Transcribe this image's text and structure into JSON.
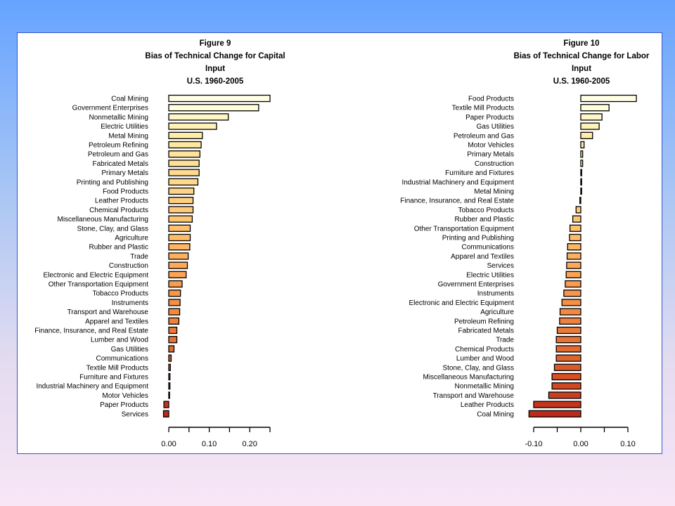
{
  "chart_data": [
    {
      "type": "bar",
      "orientation": "horizontal",
      "title": [
        "Figure 9",
        "Bias of Technical Change for Capital",
        "Input",
        "U.S. 1960-2005"
      ],
      "xlim": [
        0.0,
        0.25
      ],
      "xticks": [
        0.0,
        0.05,
        0.1,
        0.15,
        0.2,
        0.25
      ],
      "xticklabels": [
        "0.00",
        "",
        "0.10",
        "",
        "0.20",
        ""
      ],
      "grid": false,
      "bars": [
        {
          "category": "Coal Mining",
          "value": 0.25,
          "color": "#ffffe6"
        },
        {
          "category": "Government Enterprises",
          "value": 0.222,
          "color": "#ffffdb"
        },
        {
          "category": "Nonmetallic Mining",
          "value": 0.147,
          "color": "#fff6c6"
        },
        {
          "category": "Electric Utilities",
          "value": 0.118,
          "color": "#fff2b9"
        },
        {
          "category": "Metal Mining",
          "value": 0.083,
          "color": "#ffeda7"
        },
        {
          "category": "Petroleum Refining",
          "value": 0.08,
          "color": "#ffe9a0"
        },
        {
          "category": "Petroleum and Gas",
          "value": 0.077,
          "color": "#ffe49a"
        },
        {
          "category": "Fabricated Metals",
          "value": 0.075,
          "color": "#ffe096"
        },
        {
          "category": "Primary Metals",
          "value": 0.075,
          "color": "#ffdb90"
        },
        {
          "category": "Printing and Publishing",
          "value": 0.072,
          "color": "#ffd88a"
        },
        {
          "category": "Food Products",
          "value": 0.062,
          "color": "#ffd385"
        },
        {
          "category": "Leather Products",
          "value": 0.06,
          "color": "#ffce7e"
        },
        {
          "category": "Chemical Products",
          "value": 0.06,
          "color": "#ffca78"
        },
        {
          "category": "Miscellaneous Manufacturing",
          "value": 0.058,
          "color": "#ffc672"
        },
        {
          "category": "Stone, Clay, and Glass",
          "value": 0.053,
          "color": "#ffc16c"
        },
        {
          "category": "Agriculture",
          "value": 0.053,
          "color": "#ffbb66"
        },
        {
          "category": "Rubber and Plastic",
          "value": 0.052,
          "color": "#ffb662"
        },
        {
          "category": "Trade",
          "value": 0.048,
          "color": "#ffb05d"
        },
        {
          "category": "Construction",
          "value": 0.046,
          "color": "#ffa958"
        },
        {
          "category": "Electronic and Electric Equipment",
          "value": 0.043,
          "color": "#fda353"
        },
        {
          "category": "Other Transportation Equipment",
          "value": 0.033,
          "color": "#fb9c4e"
        },
        {
          "category": "Tobacco Products",
          "value": 0.029,
          "color": "#f8964a"
        },
        {
          "category": "Instruments",
          "value": 0.028,
          "color": "#f58f45"
        },
        {
          "category": "Transport and Warehouse",
          "value": 0.027,
          "color": "#f28941"
        },
        {
          "category": "Apparel and Textiles",
          "value": 0.025,
          "color": "#ee823d"
        },
        {
          "category": "Finance, Insurance, and Real Estate",
          "value": 0.02,
          "color": "#ea7a39"
        },
        {
          "category": "Lumber and Wood",
          "value": 0.02,
          "color": "#e67335"
        },
        {
          "category": "Gas Utilities",
          "value": 0.013,
          "color": "#e26b31"
        },
        {
          "category": "Communications",
          "value": 0.006,
          "color": "#de632d"
        },
        {
          "category": "Textile Mill Products",
          "value": 0.004,
          "color": "#d95a29"
        },
        {
          "category": "Furniture and Fixtures",
          "value": 0.003,
          "color": "#d45126"
        },
        {
          "category": "Industrial Machinery and Equipment",
          "value": 0.003,
          "color": "#cf4822"
        },
        {
          "category": "Motor Vehicles",
          "value": 0.002,
          "color": "#c93e1f"
        },
        {
          "category": "Paper Products",
          "value": -0.012,
          "color": "#c4341c"
        },
        {
          "category": "Services",
          "value": -0.013,
          "color": "#bd2a19"
        }
      ]
    },
    {
      "type": "bar",
      "orientation": "horizontal",
      "title": [
        "Figure 10",
        "Bias of Technical Change for Labor",
        "Input",
        "U.S. 1960-2005"
      ],
      "xlim": [
        -0.1,
        0.1
      ],
      "xticks": [
        -0.1,
        -0.05,
        0.0,
        0.05,
        0.1
      ],
      "xticklabels": [
        "-0.10",
        "",
        "0.00",
        "",
        "0.10"
      ],
      "grid": false,
      "bars": [
        {
          "category": "Food Products",
          "value": 0.118,
          "color": "#ffffe6"
        },
        {
          "category": "Textile Mill Products",
          "value": 0.06,
          "color": "#ffffdb"
        },
        {
          "category": "Paper Products",
          "value": 0.045,
          "color": "#fff6c6"
        },
        {
          "category": "Gas Utilities",
          "value": 0.039,
          "color": "#fff2b9"
        },
        {
          "category": "Petroleum and Gas",
          "value": 0.025,
          "color": "#ffeda7"
        },
        {
          "category": "Motor Vehicles",
          "value": 0.007,
          "color": "#ffe9a0"
        },
        {
          "category": "Primary Metals",
          "value": 0.004,
          "color": "#ffe49a"
        },
        {
          "category": "Construction",
          "value": 0.004,
          "color": "#ffe096"
        },
        {
          "category": "Furniture and Fixtures",
          "value": 0.002,
          "color": "#ffdb90"
        },
        {
          "category": "Industrial Machinery and Equipment",
          "value": 0.001,
          "color": "#ffd88a"
        },
        {
          "category": "Metal Mining",
          "value": 0.0,
          "color": "#ffd385"
        },
        {
          "category": "Finance, Insurance, and Real Estate",
          "value": -0.002,
          "color": "#ffce7e"
        },
        {
          "category": "Tobacco Products",
          "value": -0.01,
          "color": "#ffca78"
        },
        {
          "category": "Rubber and Plastic",
          "value": -0.017,
          "color": "#ffc672"
        },
        {
          "category": "Other Transportation Equipment",
          "value": -0.023,
          "color": "#ffc16c"
        },
        {
          "category": "Printing and Publishing",
          "value": -0.024,
          "color": "#ffbb66"
        },
        {
          "category": "Communications",
          "value": -0.028,
          "color": "#ffb662"
        },
        {
          "category": "Apparel and Textiles",
          "value": -0.029,
          "color": "#ffb05d"
        },
        {
          "category": "Services",
          "value": -0.03,
          "color": "#ffa958"
        },
        {
          "category": "Electric Utilities",
          "value": -0.031,
          "color": "#fda353"
        },
        {
          "category": "Government Enterprises",
          "value": -0.033,
          "color": "#fb9c4e"
        },
        {
          "category": "Instruments",
          "value": -0.036,
          "color": "#f8964a"
        },
        {
          "category": "Electronic and Electric Equipment",
          "value": -0.04,
          "color": "#f58f45"
        },
        {
          "category": "Agriculture",
          "value": -0.044,
          "color": "#f28941"
        },
        {
          "category": "Petroleum Refining",
          "value": -0.045,
          "color": "#ee823d"
        },
        {
          "category": "Fabricated Metals",
          "value": -0.05,
          "color": "#ea7a39"
        },
        {
          "category": "Trade",
          "value": -0.052,
          "color": "#e67335"
        },
        {
          "category": "Chemical Products",
          "value": -0.052,
          "color": "#e26b31"
        },
        {
          "category": "Lumber and Wood",
          "value": -0.052,
          "color": "#de632d"
        },
        {
          "category": "Stone, Clay, and Glass",
          "value": -0.056,
          "color": "#d95a29"
        },
        {
          "category": "Miscellaneous Manufacturing",
          "value": -0.061,
          "color": "#d45126"
        },
        {
          "category": "Nonmetallic Mining",
          "value": -0.061,
          "color": "#cf4822"
        },
        {
          "category": "Transport and Warehouse",
          "value": -0.068,
          "color": "#c93e1f"
        },
        {
          "category": "Leather Products",
          "value": -0.1,
          "color": "#c4341c"
        },
        {
          "category": "Coal Mining",
          "value": -0.11,
          "color": "#bd2a19"
        }
      ]
    }
  ]
}
